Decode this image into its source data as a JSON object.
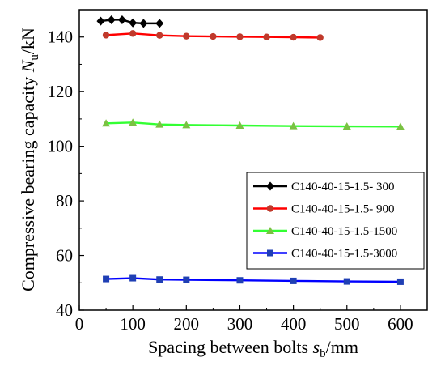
{
  "chart_data": {
    "type": "line",
    "xlabel": "Spacing between bolts s_b/mm",
    "xlabel_parts": {
      "prefix": "Spacing between bolts ",
      "symbol": "s",
      "sub": "b",
      "suffix": "/mm"
    },
    "ylabel": "Compressive bearing capacity N_u/kN",
    "ylabel_parts": {
      "prefix": "Compressive bearing capacity ",
      "symbol": "N",
      "sub": "u",
      "suffix": "/kN"
    },
    "xlim": [
      0,
      650
    ],
    "ylim": [
      40,
      150
    ],
    "xticks": [
      "0",
      "100",
      "200",
      "300",
      "400",
      "500",
      "600"
    ],
    "yticks": [
      "40",
      "60",
      "80",
      "100",
      "120",
      "140"
    ],
    "legend_position": "lower-right",
    "grid": false,
    "series": [
      {
        "name": "C140-40-15-1.5- 300",
        "color": "#000000",
        "marker": "diamond",
        "x": [
          40,
          60,
          80,
          100,
          120,
          150
        ],
        "y": [
          145.8,
          146.3,
          146.3,
          145.2,
          145.0,
          145.0
        ]
      },
      {
        "name": "C140-40-15-1.5- 900",
        "color": "#ff0000",
        "marker_color": "#c0392b",
        "marker": "circle",
        "x": [
          50,
          100,
          150,
          200,
          250,
          300,
          350,
          400,
          450
        ],
        "y": [
          140.7,
          141.3,
          140.6,
          140.3,
          140.2,
          140.1,
          140.0,
          139.9,
          139.8
        ]
      },
      {
        "name": "C140-40-15-1.5-1500",
        "color": "#33ff33",
        "marker_color": "#7ac142",
        "marker": "triangle",
        "x": [
          50,
          100,
          150,
          200,
          300,
          400,
          500,
          600
        ],
        "y": [
          108.4,
          108.7,
          108.0,
          107.8,
          107.6,
          107.4,
          107.3,
          107.2
        ]
      },
      {
        "name": "C140-40-15-1.5-3000",
        "color": "#0000ff",
        "marker_color": "#1f3fb4",
        "marker": "square",
        "x": [
          50,
          100,
          150,
          200,
          300,
          400,
          500,
          600
        ],
        "y": [
          51.4,
          51.7,
          51.2,
          51.1,
          50.9,
          50.7,
          50.5,
          50.4
        ]
      }
    ]
  }
}
